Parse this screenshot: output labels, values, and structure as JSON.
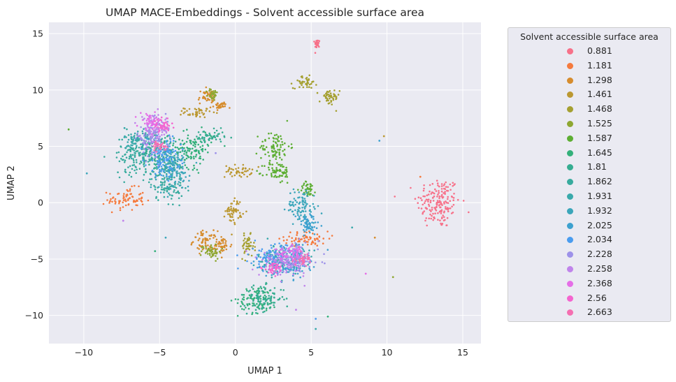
{
  "chart_data": {
    "type": "scatter",
    "title": "UMAP MACE-Embeddings - Solvent accessible surface area",
    "xlabel": "UMAP 1",
    "ylabel": "UMAP 2",
    "xlim": [
      -12.3,
      16.2
    ],
    "ylim": [
      -12.5,
      16.0
    ],
    "xticks": [
      -10,
      -5,
      0,
      5,
      10,
      15
    ],
    "yticks": [
      -10,
      -5,
      0,
      5,
      10,
      15
    ],
    "xtick_labels": [
      "−10",
      "−5",
      "0",
      "5",
      "10",
      "15"
    ],
    "ytick_labels": [
      "−10",
      "−5",
      "0",
      "5",
      "10",
      "15"
    ],
    "grid": true,
    "legend": {
      "title": "Solvent accessible surface area",
      "placement": "outside-right"
    },
    "series": [
      {
        "name": "0.881",
        "color": "#f77189",
        "clusters": [
          [
            13.4,
            0.0,
            1.3,
            2.1
          ],
          [
            5.4,
            14.1,
            0.15,
            0.35
          ]
        ]
      },
      {
        "name": "1.181",
        "color": "#f57a3d",
        "clusters": [
          [
            -7.2,
            0.3,
            1.1,
            0.9
          ],
          [
            4.7,
            -3.2,
            1.3,
            0.6
          ]
        ]
      },
      {
        "name": "1.298",
        "color": "#d68c2d",
        "clusters": [
          [
            -1.9,
            9.4,
            0.5,
            0.6
          ],
          [
            -1.0,
            8.6,
            0.4,
            0.3
          ],
          [
            -2.0,
            -3.4,
            0.7,
            0.8
          ],
          [
            -0.9,
            -3.8,
            0.6,
            0.7
          ]
        ]
      },
      {
        "name": "1.461",
        "color": "#bb9832",
        "clusters": [
          [
            0.2,
            2.8,
            0.8,
            0.5
          ],
          [
            -0.1,
            -0.7,
            0.5,
            1.0
          ],
          [
            -2.5,
            8.0,
            0.8,
            0.4
          ]
        ]
      },
      {
        "name": "1.468",
        "color": "#a5a031",
        "clusters": [
          [
            6.2,
            9.3,
            0.6,
            0.7
          ],
          [
            4.6,
            10.7,
            0.7,
            0.5
          ],
          [
            0.8,
            -3.9,
            0.4,
            0.9
          ]
        ]
      },
      {
        "name": "1.525",
        "color": "#8ea731",
        "clusters": [
          [
            -1.5,
            9.6,
            0.3,
            0.5
          ],
          [
            -1.6,
            -4.3,
            0.6,
            0.6
          ]
        ]
      },
      {
        "name": "1.587",
        "color": "#5dae33",
        "clusters": [
          [
            2.6,
            5.0,
            0.9,
            1.2
          ],
          [
            2.8,
            2.7,
            0.8,
            0.9
          ],
          [
            4.8,
            1.2,
            0.5,
            0.6
          ]
        ]
      },
      {
        "name": "1.645",
        "color": "#33b07a",
        "clusters": [
          [
            1.5,
            -8.6,
            1.2,
            1.1
          ],
          [
            -3.0,
            4.7,
            1.3,
            1.4
          ]
        ]
      },
      {
        "name": "1.81",
        "color": "#36ad91",
        "clusters": [
          [
            1.9,
            -8.5,
            1.2,
            1.0
          ],
          [
            -5.0,
            4.3,
            1.2,
            1.6
          ],
          [
            -1.7,
            5.8,
            0.9,
            0.6
          ]
        ]
      },
      {
        "name": "1.862",
        "color": "#38ab9e",
        "clusters": [
          [
            -6.5,
            4.3,
            1.3,
            1.7
          ],
          [
            -4.5,
            1.8,
            1.0,
            1.5
          ]
        ]
      },
      {
        "name": "1.931",
        "color": "#39a9ab",
        "clusters": [
          [
            -6.2,
            5.5,
            1.0,
            1.1
          ],
          [
            3.0,
            -5.0,
            1.4,
            1.2
          ]
        ]
      },
      {
        "name": "1.932",
        "color": "#3ba6ba",
        "clusters": [
          [
            -4.1,
            3.0,
            1.0,
            1.7
          ],
          [
            4.4,
            -0.3,
            0.9,
            1.4
          ]
        ]
      },
      {
        "name": "2.025",
        "color": "#3da1cf",
        "clusters": [
          [
            3.5,
            -5.5,
            1.3,
            1.1
          ],
          [
            4.8,
            -2.0,
            0.7,
            0.9
          ]
        ]
      },
      {
        "name": "2.034",
        "color": "#4a9cef",
        "clusters": [
          [
            2.5,
            -4.8,
            1.4,
            1.1
          ],
          [
            -4.7,
            4.1,
            1.0,
            1.6
          ]
        ]
      },
      {
        "name": "2.228",
        "color": "#9d91e9",
        "clusters": [
          [
            4.0,
            -4.9,
            1.4,
            1.2
          ],
          [
            -5.5,
            5.7,
            0.9,
            1.4
          ]
        ]
      },
      {
        "name": "2.258",
        "color": "#c084eb",
        "clusters": [
          [
            3.2,
            -5.3,
            1.5,
            1.1
          ],
          [
            -5.3,
            6.5,
            0.9,
            1.1
          ]
        ]
      },
      {
        "name": "2.368",
        "color": "#e56ee7",
        "clusters": [
          [
            3.8,
            -4.5,
            0.8,
            0.6
          ],
          [
            -5.6,
            7.2,
            0.6,
            0.6
          ]
        ]
      },
      {
        "name": "2.56",
        "color": "#f465cf",
        "clusters": [
          [
            2.5,
            -5.8,
            0.6,
            0.5
          ],
          [
            -4.8,
            6.8,
            0.5,
            0.5
          ]
        ]
      },
      {
        "name": "2.663",
        "color": "#f56fb1",
        "clusters": [
          [
            4.5,
            -5.0,
            0.4,
            0.4
          ],
          [
            -5.0,
            5.0,
            0.4,
            0.4
          ]
        ]
      }
    ],
    "outliers": [
      {
        "x": -11.0,
        "y": 6.5,
        "color": "#5dae33"
      },
      {
        "x": -9.8,
        "y": 2.6,
        "color": "#3ba6ba"
      },
      {
        "x": -7.4,
        "y": -1.6,
        "color": "#c084eb"
      },
      {
        "x": -5.3,
        "y": -4.3,
        "color": "#33b07a"
      },
      {
        "x": -4.6,
        "y": -3.1,
        "color": "#3ba6ba"
      },
      {
        "x": -1.3,
        "y": 4.4,
        "color": "#9d91e9"
      },
      {
        "x": 4.0,
        "y": -9.5,
        "color": "#c084eb"
      },
      {
        "x": 5.3,
        "y": -10.3,
        "color": "#4a9cef"
      },
      {
        "x": 5.3,
        "y": -11.2,
        "color": "#39a9ab"
      },
      {
        "x": 6.1,
        "y": -10.1,
        "color": "#33b07a"
      },
      {
        "x": 7.7,
        "y": -2.2,
        "color": "#39a9ab"
      },
      {
        "x": 8.6,
        "y": -6.3,
        "color": "#e56ee7"
      },
      {
        "x": 9.2,
        "y": -3.1,
        "color": "#d68c2d"
      },
      {
        "x": 9.5,
        "y": 5.5,
        "color": "#3da1cf"
      },
      {
        "x": 9.8,
        "y": 5.9,
        "color": "#bb9832"
      },
      {
        "x": 10.4,
        "y": -6.6,
        "color": "#8ea731"
      },
      {
        "x": 12.2,
        "y": 2.3,
        "color": "#f57a3d"
      }
    ]
  }
}
